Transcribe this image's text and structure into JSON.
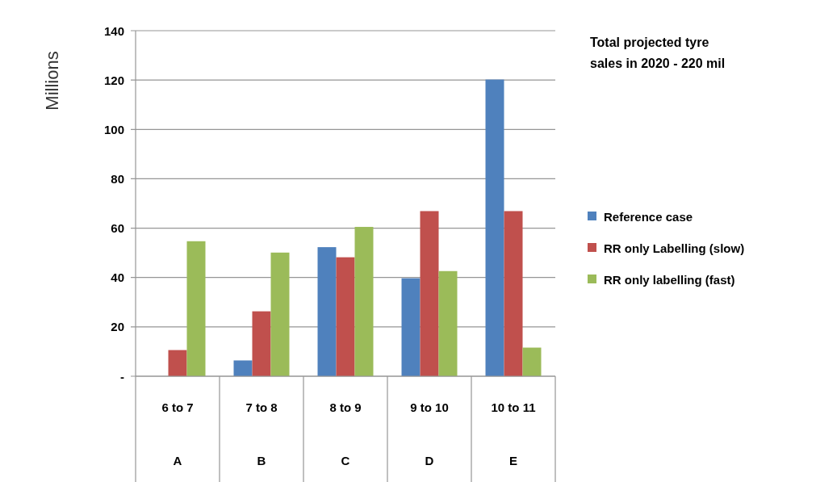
{
  "chart_data": {
    "type": "bar",
    "title": "Total projected tyre sales in 2020  - 220 mil",
    "ylabel": "Millions",
    "categories": [
      "6 to 7\nA",
      "7 to 8\nB",
      "8 to 9\nC",
      "9 to 10\nD",
      "10 to 11\nE"
    ],
    "series": [
      {
        "name": "Reference case",
        "color": "#4f81bd",
        "values": [
          0,
          6.4,
          52.3,
          39.7,
          120.2
        ]
      },
      {
        "name": "RR only  Labelling (slow)",
        "color": "#c0504d",
        "values": [
          10.6,
          26.3,
          48.2,
          66.9,
          66.9
        ]
      },
      {
        "name": "RR only  labelling (fast)",
        "color": "#9bbb59",
        "values": [
          54.7,
          50.1,
          60.5,
          42.6,
          11.6
        ]
      }
    ],
    "ylim": [
      0,
      140
    ],
    "yticks": [
      {
        "value": 0,
        "label": "-"
      },
      20,
      40,
      60,
      80,
      100,
      120,
      140
    ],
    "grid": "y",
    "legend": "right"
  }
}
